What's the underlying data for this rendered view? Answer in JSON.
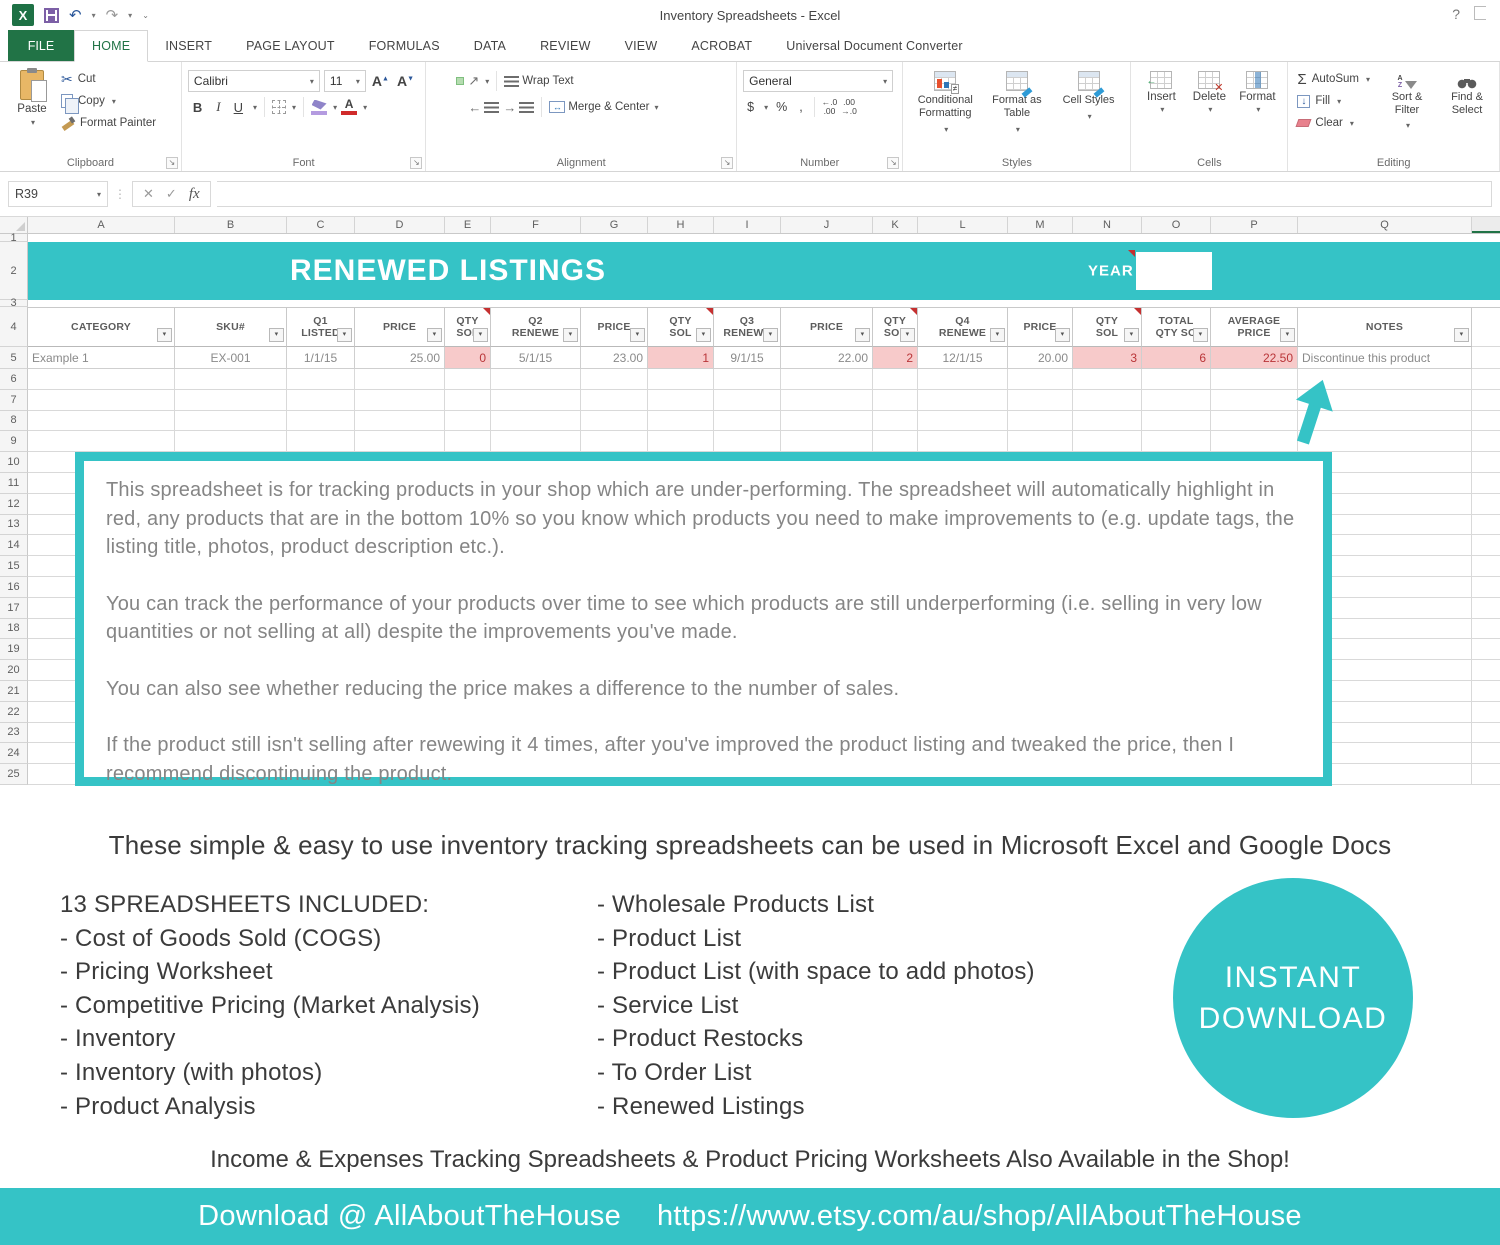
{
  "icons": {
    "dropdown": "▾",
    "undo": "↶",
    "redo": "↷",
    "more": "⌄",
    "help": "?",
    "cut": "✂",
    "close": "✕",
    "check": "✓",
    "neq": "≠",
    "down": "↓",
    "left": "←",
    "right": "→",
    "upright": "↗",
    "launcher": "↘",
    "merge_arrows": "↔",
    "dots": "⋮",
    "a_up": "▲",
    "a_down": "▼"
  },
  "titlebar": {
    "title": "Inventory Spreadsheets - Excel"
  },
  "tabs": {
    "file": "FILE",
    "active": "HOME",
    "items": [
      "HOME",
      "INSERT",
      "PAGE LAYOUT",
      "FORMULAS",
      "DATA",
      "REVIEW",
      "VIEW",
      "ACROBAT",
      "Universal Document Converter"
    ]
  },
  "ribbon": {
    "clipboard": {
      "label": "Clipboard",
      "paste": "Paste",
      "cut": "Cut",
      "copy": "Copy",
      "format_painter": "Format Painter"
    },
    "font": {
      "label": "Font",
      "family": "Calibri",
      "size": "11",
      "bold": "B",
      "italic": "I",
      "underline": "U"
    },
    "alignment": {
      "label": "Alignment",
      "wrap_text": "Wrap Text",
      "merge_center": "Merge & Center"
    },
    "number": {
      "label": "Number",
      "format": "General",
      "currency": "$",
      "percent": "%",
      "comma": ",",
      "inc_dec": "←.0\n.00",
      "dec_dec": ".00\n→.0"
    },
    "styles": {
      "label": "Styles",
      "conditional": "Conditional Formatting",
      "format_table": "Format as Table",
      "cell_styles": "Cell Styles"
    },
    "cells": {
      "label": "Cells",
      "insert": "Insert",
      "delete": "Delete",
      "format": "Format"
    },
    "editing": {
      "label": "Editing",
      "autosum": "AutoSum",
      "fill": "Fill",
      "clear": "Clear",
      "sort": "Sort & Filter",
      "find": "Find & Select"
    }
  },
  "formula_bar": {
    "name_box": "R39",
    "fx": "fx"
  },
  "sheet": {
    "columns": [
      "A",
      "B",
      "C",
      "D",
      "E",
      "F",
      "G",
      "H",
      "I",
      "J",
      "K",
      "L",
      "M",
      "N",
      "O",
      "P",
      "Q"
    ],
    "row_numbers": [
      "1",
      "2",
      "3",
      "4",
      "5",
      "6",
      "7",
      "8",
      "9",
      "10",
      "11",
      "12",
      "13",
      "14",
      "15",
      "16",
      "17",
      "18",
      "19",
      "20",
      "21",
      "22",
      "23",
      "24",
      "25"
    ],
    "banner": {
      "title": "RENEWED LISTINGS",
      "year_label": "YEAR"
    },
    "headers": [
      {
        "l1": "",
        "l2": "CATEGORY"
      },
      {
        "l1": "",
        "l2": "SKU#"
      },
      {
        "l1": "Q1",
        "l2": "LISTED"
      },
      {
        "l1": "",
        "l2": "PRICE"
      },
      {
        "l1": "QTY",
        "l2": "SOL",
        "flag": true
      },
      {
        "l1": "Q2",
        "l2": "RENEWE"
      },
      {
        "l1": "",
        "l2": "PRICE"
      },
      {
        "l1": "QTY",
        "l2": "SOL",
        "flag": true
      },
      {
        "l1": "Q3",
        "l2": "RENEWE"
      },
      {
        "l1": "",
        "l2": "PRICE"
      },
      {
        "l1": "QTY",
        "l2": "SOL",
        "flag": true
      },
      {
        "l1": "Q4",
        "l2": "RENEWE"
      },
      {
        "l1": "",
        "l2": "PRICE"
      },
      {
        "l1": "QTY",
        "l2": "SOL",
        "flag": true
      },
      {
        "l1": "TOTAL",
        "l2": "QTY SO"
      },
      {
        "l1": "AVERAGE",
        "l2": "PRICE"
      },
      {
        "l1": "",
        "l2": "NOTES"
      }
    ],
    "row5": [
      {
        "v": "Example 1",
        "a": "l"
      },
      {
        "v": "EX-001",
        "a": "c"
      },
      {
        "v": "1/1/15",
        "a": "c"
      },
      {
        "v": "25.00",
        "a": "r"
      },
      {
        "v": "0",
        "a": "r",
        "hl": true
      },
      {
        "v": "5/1/15",
        "a": "c"
      },
      {
        "v": "23.00",
        "a": "r"
      },
      {
        "v": "1",
        "a": "r",
        "hl": true
      },
      {
        "v": "9/1/15",
        "a": "c"
      },
      {
        "v": "22.00",
        "a": "r"
      },
      {
        "v": "2",
        "a": "r",
        "hl": true
      },
      {
        "v": "12/1/15",
        "a": "c"
      },
      {
        "v": "20.00",
        "a": "r"
      },
      {
        "v": "3",
        "a": "r",
        "hl": true
      },
      {
        "v": "6",
        "a": "r",
        "hl": true
      },
      {
        "v": "22.50",
        "a": "r",
        "hl": true
      },
      {
        "v": "Discontinue this product",
        "a": "l"
      }
    ]
  },
  "textbox": {
    "paragraphs": [
      "This spreadsheet is for tracking products in your shop which are under-performing.  The spreadsheet will automatically highlight in red, any products that are in the bottom 10% so you know which products you need to make improvements to (e.g. update tags, the listing title, photos, product description etc.).",
      "You can track the performance of your products over time to see which products are still underperforming (i.e. selling in very low quantities or not selling at all) despite the improvements you've made.",
      "You can also see whether reducing the price makes a difference to the number of sales.",
      "If the product still isn't selling after rewewing it 4 times, after you've improved the product listing and tweaked the price, then I recommend discontinuing the product."
    ]
  },
  "below": {
    "headline": "These simple & easy to use inventory tracking spreadsheets can be used in Microsoft Excel and Google Docs",
    "list_title": "13 SPREADSHEETS INCLUDED:",
    "left_items": [
      "- Cost of Goods Sold (COGS)",
      "- Pricing Worksheet",
      "- Competitive Pricing (Market Analysis)",
      "- Inventory",
      "- Inventory (with photos)",
      "- Product Analysis"
    ],
    "right_items": [
      "- Wholesale Products List",
      "- Product List",
      "- Product List (with space to add photos)",
      "- Service List",
      "- Product Restocks",
      "- To Order List",
      "- Renewed Listings"
    ],
    "badge_line1": "INSTANT",
    "badge_line2": "DOWNLOAD",
    "also_line": "Income & Expenses Tracking Spreadsheets & Product Pricing Worksheets Also Available in the Shop!",
    "footer_prefix": "Download @ AllAboutTheHouse",
    "footer_url": "https://www.etsy.com/au/shop/AllAboutTheHouse"
  },
  "colors": {
    "teal": "#35c3c6",
    "excel_green": "#217346",
    "highlight_pink": "#f7caca",
    "highlight_red": "#b93538"
  }
}
